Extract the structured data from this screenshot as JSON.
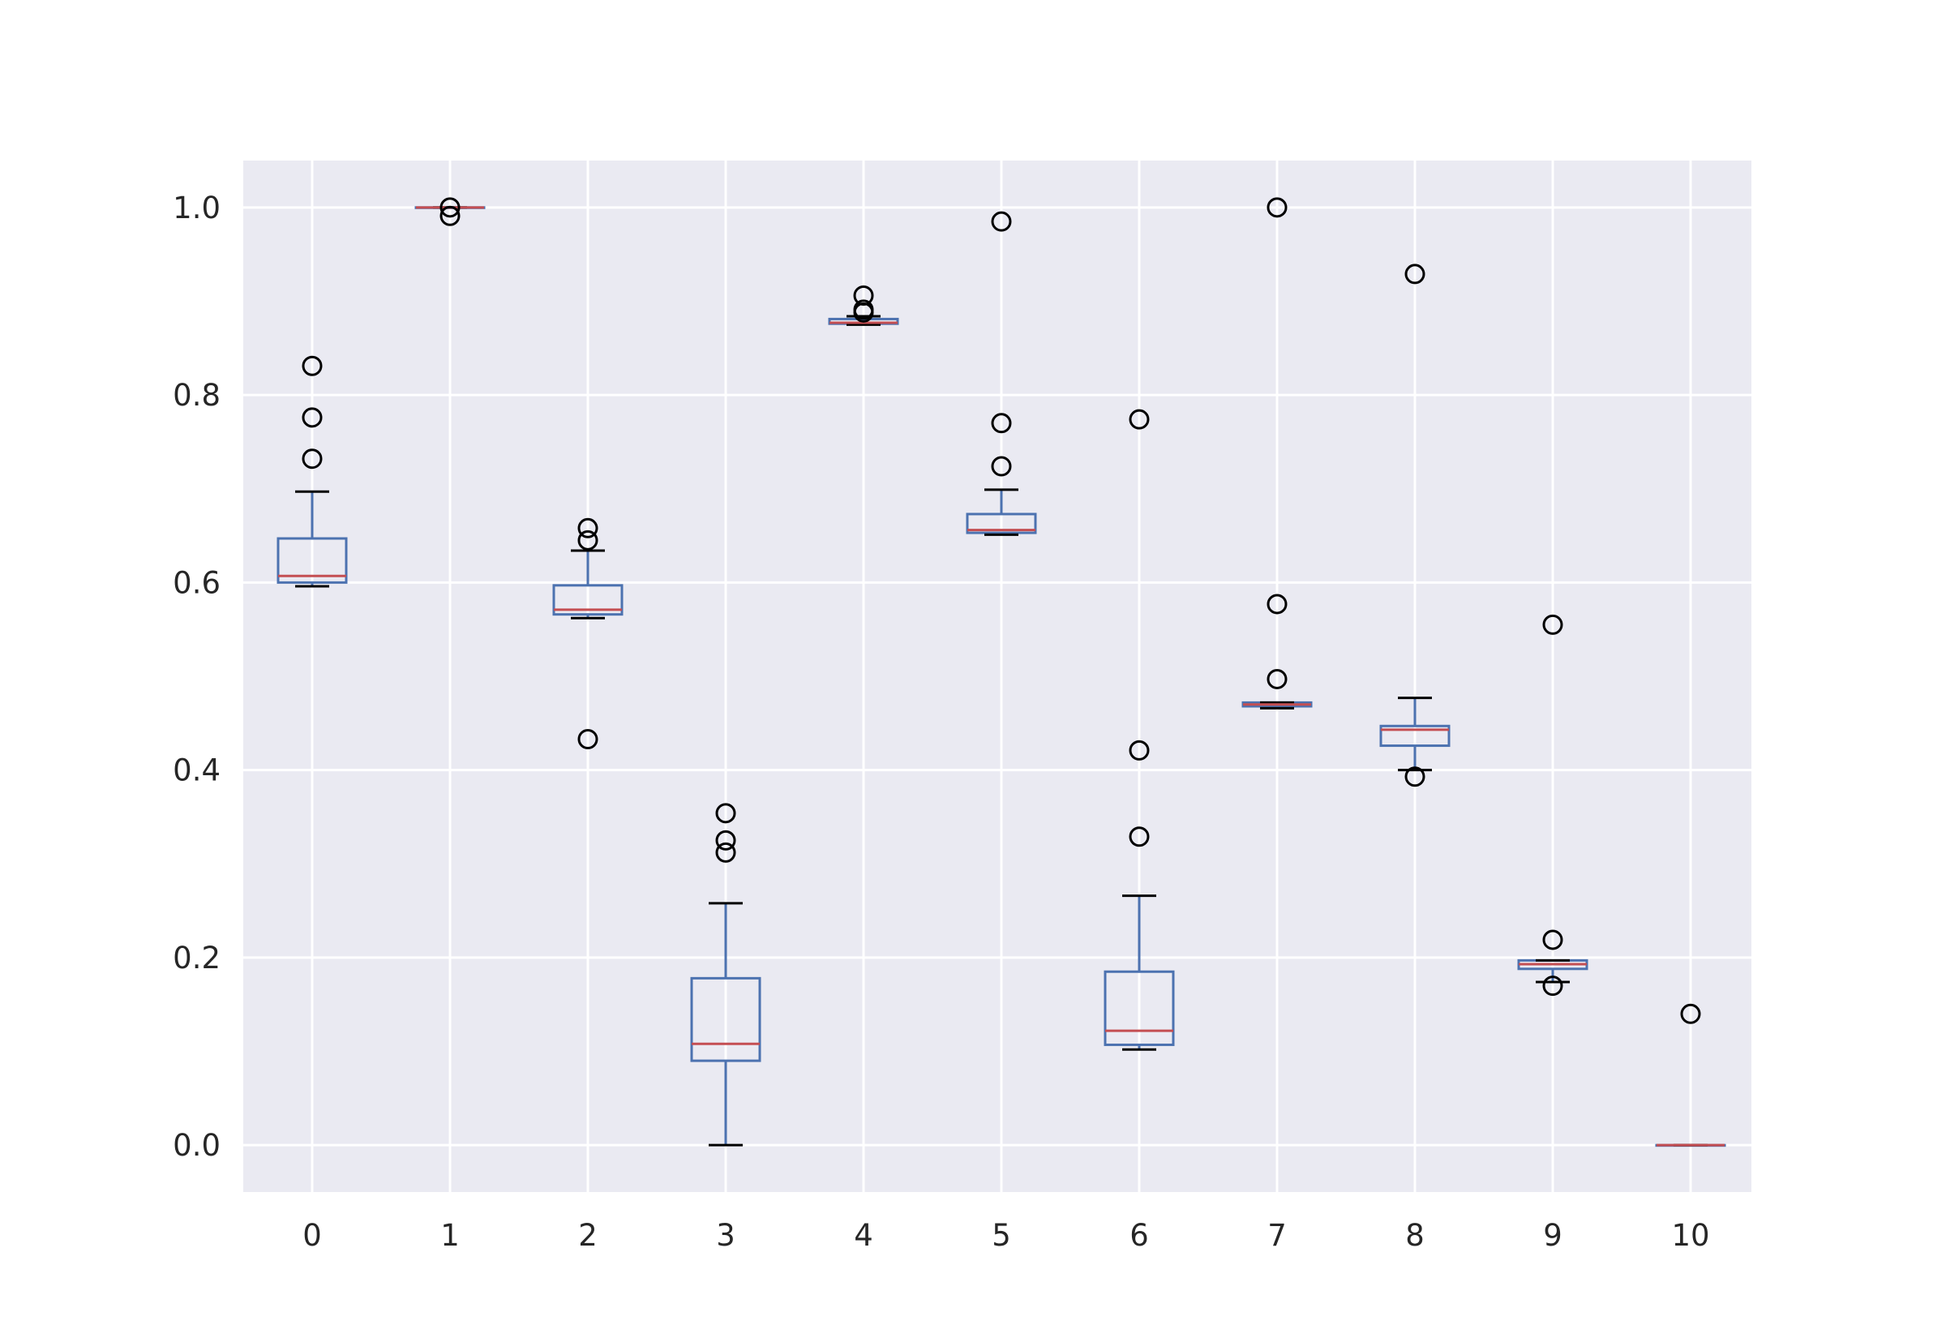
{
  "chart_data": {
    "type": "box",
    "title": "",
    "xlabel": "",
    "ylabel": "",
    "ylim": [
      -0.05,
      1.05
    ],
    "grid": true,
    "categories": [
      "0",
      "1",
      "2",
      "3",
      "4",
      "5",
      "6",
      "7",
      "8",
      "9",
      "10"
    ],
    "y_ticks": [
      "0.0",
      "0.2",
      "0.4",
      "0.6",
      "0.8",
      "1.0"
    ],
    "boxes": [
      {
        "category": "0",
        "whisker_low": 0.596,
        "q1": 0.6,
        "median": 0.607,
        "q3": 0.647,
        "whisker_high": 0.697,
        "fliers": [
          0.732,
          0.776,
          0.831
        ]
      },
      {
        "category": "1",
        "whisker_low": 1.0,
        "q1": 1.0,
        "median": 1.0,
        "q3": 1.0,
        "whisker_high": 1.0,
        "fliers": [
          0.991,
          1.0
        ]
      },
      {
        "category": "2",
        "whisker_low": 0.562,
        "q1": 0.566,
        "median": 0.571,
        "q3": 0.597,
        "whisker_high": 0.634,
        "fliers": [
          0.433,
          0.645,
          0.658
        ]
      },
      {
        "category": "3",
        "whisker_low": 0.0,
        "q1": 0.09,
        "median": 0.108,
        "q3": 0.178,
        "whisker_high": 0.258,
        "fliers": [
          0.312,
          0.325,
          0.354
        ]
      },
      {
        "category": "4",
        "whisker_low": 0.875,
        "q1": 0.876,
        "median": 0.877,
        "q3": 0.881,
        "whisker_high": 0.884,
        "fliers": [
          0.888,
          0.891,
          0.906
        ]
      },
      {
        "category": "5",
        "whisker_low": 0.651,
        "q1": 0.653,
        "median": 0.656,
        "q3": 0.673,
        "whisker_high": 0.699,
        "fliers": [
          0.724,
          0.77,
          0.985
        ]
      },
      {
        "category": "6",
        "whisker_low": 0.102,
        "q1": 0.107,
        "median": 0.122,
        "q3": 0.185,
        "whisker_high": 0.266,
        "fliers": [
          0.329,
          0.421,
          0.774
        ]
      },
      {
        "category": "7",
        "whisker_low": 0.466,
        "q1": 0.468,
        "median": 0.47,
        "q3": 0.472,
        "whisker_high": 0.472,
        "fliers": [
          0.497,
          0.577,
          1.0
        ]
      },
      {
        "category": "8",
        "whisker_low": 0.4,
        "q1": 0.426,
        "median": 0.443,
        "q3": 0.447,
        "whisker_high": 0.477,
        "fliers": [
          0.393,
          0.929
        ]
      },
      {
        "category": "9",
        "whisker_low": 0.174,
        "q1": 0.188,
        "median": 0.193,
        "q3": 0.197,
        "whisker_high": 0.197,
        "fliers": [
          0.17,
          0.219,
          0.555
        ]
      },
      {
        "category": "10",
        "whisker_low": 0.0,
        "q1": 0.0,
        "median": 0.0,
        "q3": 0.0,
        "whisker_high": 0.0,
        "fliers": [
          0.14
        ]
      }
    ]
  },
  "colors": {
    "figure_background": "#ffffff",
    "axes_background": "#eaeaf2",
    "grid": "#ffffff",
    "box": "#4c72b0",
    "median": "#c44e52",
    "cap": "#000000",
    "flier": "#000000",
    "tick_label": "#262626"
  }
}
